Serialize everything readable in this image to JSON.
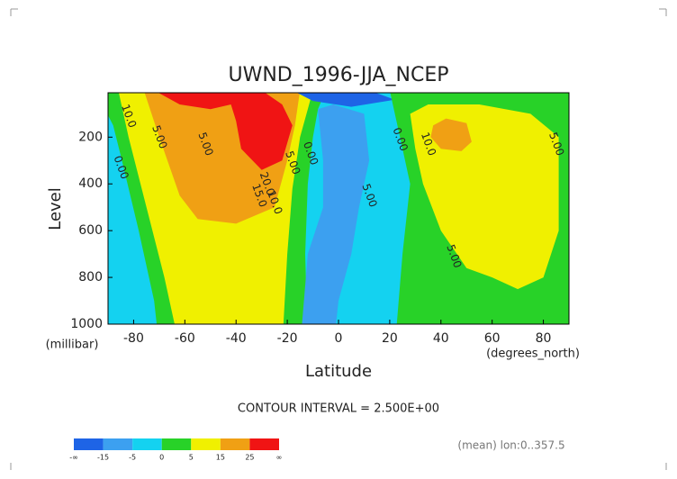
{
  "chart_data": {
    "type": "contour",
    "title": "UWND_1996-JJA_NCEP",
    "x_label": "Latitude",
    "x_unit": "(degrees_north)",
    "y_label": "Level",
    "y_unit": "(millibar)",
    "xlim": [
      -90,
      90
    ],
    "xticks": [
      -80,
      -60,
      -40,
      -20,
      0,
      20,
      40,
      60,
      80
    ],
    "ylim": [
      1000,
      10
    ],
    "yticks": [
      200,
      400,
      600,
      800,
      1000
    ],
    "contour_interval": "CONTOUR INTERVAL = 2.500E+00",
    "note": "(mean) lon:0..357.5",
    "colorbar": {
      "ticks": [
        "-∞",
        -15,
        -5,
        0,
        5,
        15,
        25,
        "∞"
      ],
      "colors": [
        "#1e64e6",
        "#3ca0f0",
        "#14d2f0",
        "#28d228",
        "#f0f000",
        "#f0a014",
        "#f01414"
      ]
    },
    "contour_labels": [
      "10.0",
      "5.00",
      "0.00",
      "5.00",
      "20.0",
      "15.0",
      "10.0",
      "5.00",
      "0.00",
      "5.00",
      "0.00",
      "10.0",
      "5.00",
      "5.00"
    ]
  }
}
